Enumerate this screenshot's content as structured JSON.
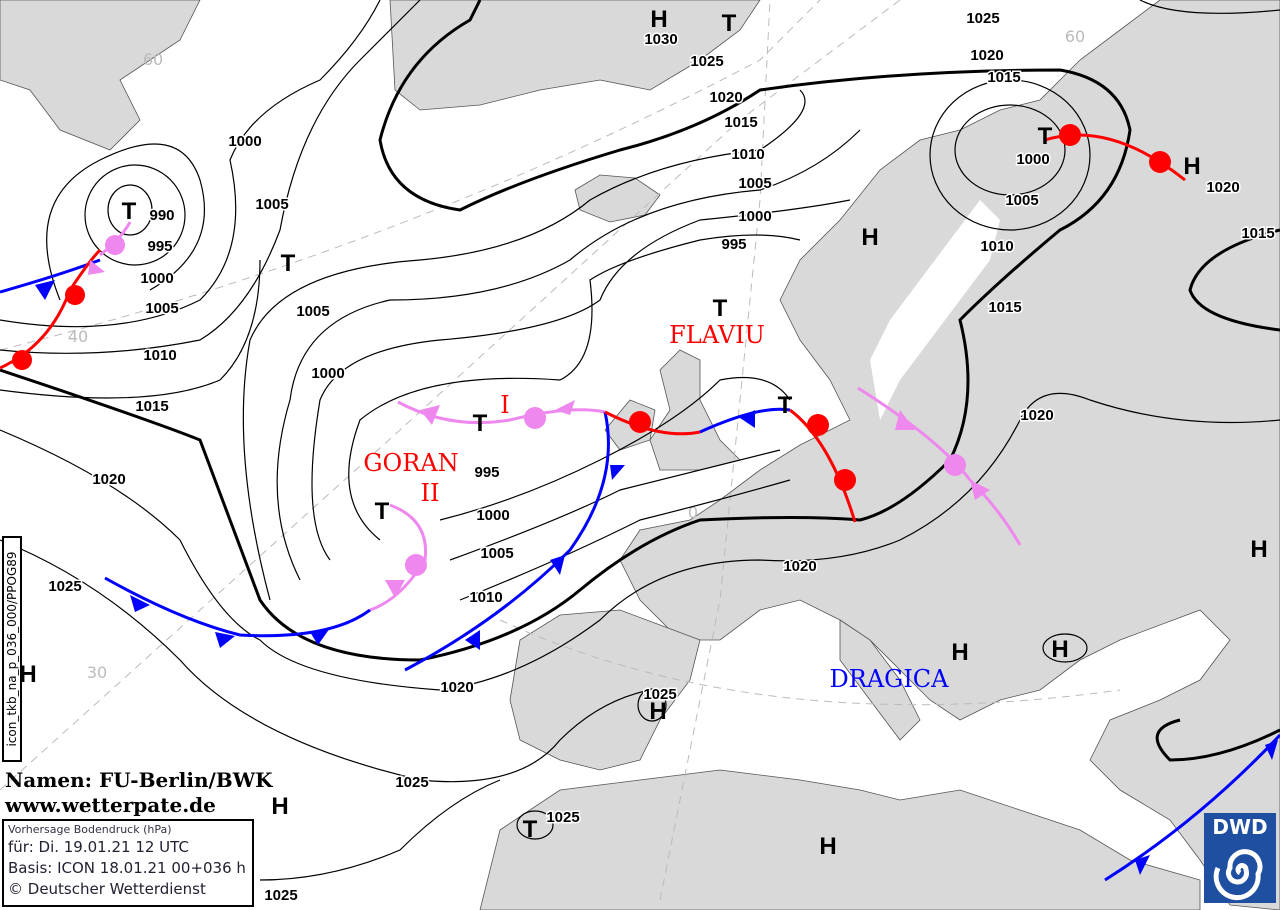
{
  "map": {
    "pressure_labels": [
      "1030",
      "1025",
      "1025",
      "1020",
      "1015",
      "1020",
      "1015",
      "1010",
      "1005",
      "1000",
      "995",
      "1000",
      "1005",
      "1010",
      "1015",
      "1020",
      "1015",
      "1020",
      "1020",
      "1000",
      "1005",
      "990",
      "995",
      "1000",
      "1005",
      "1010",
      "1015",
      "1020",
      "1025",
      "1005",
      "1000",
      "995",
      "1000",
      "1005",
      "1010",
      "1020",
      "1025",
      "1025",
      "1025",
      "1025"
    ],
    "high_symbol": "H",
    "low_symbol": "T",
    "grid_labels": [
      "60",
      "60",
      "40",
      "30",
      "0"
    ],
    "system_names": {
      "flaviu": "FLAVIU",
      "flaviu_part": "I",
      "goran": "GORAN",
      "goran_part": "II",
      "dragica": "DRAGICA"
    },
    "colors": {
      "land": "#d9d9d9",
      "cold_front": "#0000ff",
      "warm_front": "#ff0000",
      "occlusion": "#ee88ee",
      "low_name": "#ff0000",
      "high_name": "#0000ff"
    }
  },
  "model_code": "icon_tkb_na_p_036_000/PPOG89",
  "credit": {
    "names": "Namen: FU-Berlin/BWK",
    "url": "www.wetterpate.de"
  },
  "info": {
    "title": "Vorhersage Bodendruck (hPa)",
    "valid": "für:  Di. 19.01.21  12 UTC",
    "basis": "Basis: ICON  18.01.21 00+036 h",
    "copyright": "© Deutscher Wetterdienst"
  },
  "logo": {
    "text": "DWD"
  }
}
